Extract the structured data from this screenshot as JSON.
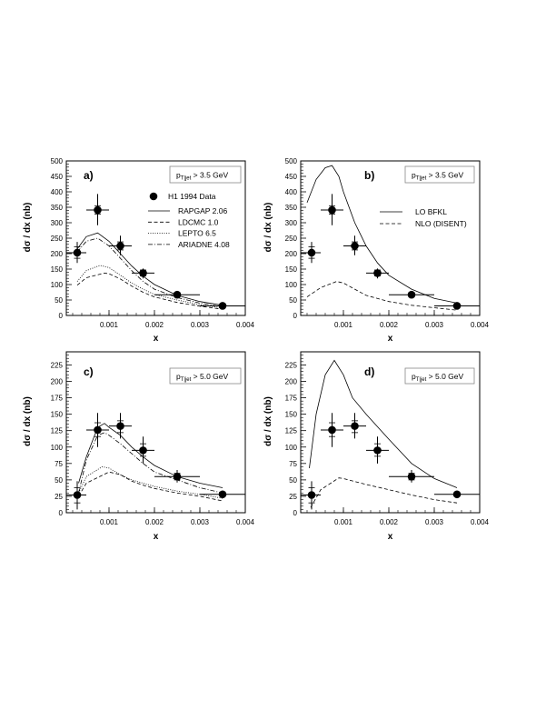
{
  "chart_data": [
    {
      "id": "a",
      "type": "scatter",
      "panel_label": "a)",
      "cut_label": {
        "p": "p",
        "sub": "T|jet",
        "rest": " > 3.5 GeV"
      },
      "xlabel": "x",
      "ylabel": "dσ / dx  (nb)",
      "xlim": [
        6e-05,
        0.004
      ],
      "ylim": [
        0,
        500
      ],
      "xticks": [
        0.001,
        0.002,
        0.003,
        0.004
      ],
      "xtick_labels": [
        "0.001",
        "0.002",
        "0.003",
        "0.004"
      ],
      "yticks": [
        0,
        50,
        100,
        150,
        200,
        250,
        300,
        350,
        400,
        450,
        500
      ],
      "ytick_labels": [
        "0",
        "50",
        "100",
        "150",
        "200",
        "250",
        "300",
        "350",
        "400",
        "450",
        "500"
      ],
      "data": {
        "name": "H1 1994 Data",
        "x": [
          0.0003,
          0.00075,
          0.00125,
          0.00175,
          0.0025,
          0.0035
        ],
        "xlo": [
          6e-05,
          0.0005,
          0.001,
          0.0015,
          0.002,
          0.003
        ],
        "xhi": [
          0.0005,
          0.001,
          0.0015,
          0.002,
          0.003,
          0.004
        ],
        "y": [
          203,
          341,
          225,
          137,
          67,
          31
        ],
        "stat_lo": [
          185,
          328,
          212,
          128,
          61,
          28
        ],
        "stat_hi": [
          222,
          355,
          238,
          147,
          73,
          34
        ],
        "tot_lo": [
          170,
          292,
          195,
          120,
          58,
          26
        ],
        "tot_hi": [
          238,
          393,
          258,
          152,
          76,
          36
        ]
      },
      "series": [
        {
          "name": "RAPGAP 2.06",
          "style": "solid",
          "x": [
            0.0003,
            0.0005,
            0.00075,
            0.001,
            0.00125,
            0.0015,
            0.00175,
            0.002,
            0.0025,
            0.003,
            0.0035
          ],
          "y": [
            215,
            255,
            267,
            240,
            200,
            160,
            127,
            100,
            65,
            45,
            33
          ]
        },
        {
          "name": "LDCMC 1.0",
          "style": "dashed",
          "x": [
            0.0003,
            0.0005,
            0.0009,
            0.001,
            0.00125,
            0.0015,
            0.00175,
            0.002,
            0.0025,
            0.003,
            0.0035
          ],
          "y": [
            98,
            122,
            137,
            135,
            118,
            95,
            75,
            60,
            42,
            30,
            20
          ]
        },
        {
          "name": "LEPTO 6.5",
          "style": "dotted",
          "x": [
            0.0003,
            0.0005,
            0.0008,
            0.001,
            0.00125,
            0.0015,
            0.00175,
            0.002,
            0.0025,
            0.003,
            0.0035
          ],
          "y": [
            110,
            145,
            162,
            155,
            130,
            105,
            85,
            68,
            50,
            35,
            24
          ]
        },
        {
          "name": "ARIADNE 4.08",
          "style": "dashdot",
          "x": [
            0.0003,
            0.0005,
            0.00075,
            0.001,
            0.00125,
            0.0015,
            0.00175,
            0.002,
            0.0025,
            0.003,
            0.0035
          ],
          "y": [
            205,
            240,
            250,
            225,
            185,
            145,
            110,
            85,
            58,
            40,
            28
          ]
        }
      ],
      "legend": "top-right"
    },
    {
      "id": "b",
      "type": "scatter",
      "panel_label": "b)",
      "cut_label": {
        "p": "p",
        "sub": "T|jet",
        "rest": " > 3.5 GeV"
      },
      "xlabel": "x",
      "ylabel": "dσ / dx  (nb)",
      "xlim": [
        6e-05,
        0.004
      ],
      "ylim": [
        0,
        500
      ],
      "xticks": [
        0.001,
        0.002,
        0.003,
        0.004
      ],
      "xtick_labels": [
        "0.001",
        "0.002",
        "0.003",
        "0.004"
      ],
      "yticks": [
        0,
        50,
        100,
        150,
        200,
        250,
        300,
        350,
        400,
        450,
        500
      ],
      "ytick_labels": [
        "0",
        "50",
        "100",
        "150",
        "200",
        "250",
        "300",
        "350",
        "400",
        "450",
        "500"
      ],
      "data": {
        "name": "H1 1994 Data",
        "x": [
          0.0003,
          0.00075,
          0.00125,
          0.00175,
          0.0025,
          0.0035
        ],
        "xlo": [
          6e-05,
          0.0005,
          0.001,
          0.0015,
          0.002,
          0.003
        ],
        "xhi": [
          0.0005,
          0.001,
          0.0015,
          0.002,
          0.003,
          0.004
        ],
        "y": [
          203,
          341,
          225,
          137,
          67,
          31
        ],
        "stat_lo": [
          185,
          328,
          212,
          128,
          61,
          28
        ],
        "stat_hi": [
          222,
          355,
          238,
          147,
          73,
          34
        ],
        "tot_lo": [
          170,
          292,
          195,
          120,
          58,
          26
        ],
        "tot_hi": [
          238,
          393,
          258,
          152,
          76,
          36
        ]
      },
      "series": [
        {
          "name": "LO BFKL",
          "style": "solid",
          "x": [
            0.0002,
            0.0004,
            0.0006,
            0.00075,
            0.0009,
            0.001,
            0.00125,
            0.0015,
            0.00175,
            0.002,
            0.0025,
            0.003,
            0.0035
          ],
          "y": [
            365,
            440,
            478,
            485,
            450,
            400,
            300,
            225,
            170,
            130,
            85,
            55,
            40
          ]
        },
        {
          "name": "NLO (DISENT)",
          "style": "dashed",
          "x": [
            0.0002,
            0.0005,
            0.00085,
            0.001,
            0.00125,
            0.0015,
            0.002,
            0.0025,
            0.003,
            0.0035
          ],
          "y": [
            60,
            90,
            110,
            105,
            85,
            65,
            45,
            33,
            25,
            17
          ]
        }
      ],
      "legend": "top-right"
    },
    {
      "id": "c",
      "type": "scatter",
      "panel_label": "c)",
      "cut_label": {
        "p": "p",
        "sub": "T|jet",
        "rest": " > 5.0 GeV"
      },
      "xlabel": "x",
      "ylabel": "dσ / dx  (nb)",
      "xlim": [
        6e-05,
        0.004
      ],
      "ylim": [
        0,
        245
      ],
      "xticks": [
        0.001,
        0.002,
        0.003,
        0.004
      ],
      "xtick_labels": [
        "0.001",
        "0.002",
        "0.003",
        "0.004"
      ],
      "yticks": [
        0,
        25,
        50,
        75,
        100,
        125,
        150,
        175,
        200,
        225
      ],
      "ytick_labels": [
        "0",
        "25",
        "50",
        "75",
        "100",
        "125",
        "150",
        "175",
        "200",
        "225"
      ],
      "data": {
        "name": "H1 1994 Data",
        "x": [
          0.0003,
          0.00075,
          0.00125,
          0.00175,
          0.0025,
          0.0035
        ],
        "xlo": [
          6e-05,
          0.0005,
          0.001,
          0.0015,
          0.002,
          0.003
        ],
        "xhi": [
          0.0005,
          0.001,
          0.0015,
          0.002,
          0.003,
          0.004
        ],
        "y": [
          27,
          126,
          132,
          95,
          55,
          28
        ],
        "stat_lo": [
          15,
          116,
          122,
          86,
          50,
          26
        ],
        "stat_hi": [
          38,
          137,
          140,
          105,
          60,
          30
        ],
        "tot_lo": [
          5,
          100,
          113,
          75,
          46,
          25
        ],
        "tot_hi": [
          48,
          152,
          152,
          116,
          65,
          31
        ]
      },
      "series": [
        {
          "name": "RAPGAP 2.06",
          "style": "solid",
          "x": [
            0.00033,
            0.0005,
            0.00075,
            0.0009,
            0.001,
            0.00125,
            0.0015,
            0.00175,
            0.002,
            0.0025,
            0.003,
            0.0035
          ],
          "y": [
            45,
            85,
            130,
            136,
            130,
            118,
            100,
            85,
            72,
            55,
            45,
            38
          ]
        },
        {
          "name": "LDCMC 1.0",
          "style": "dashed",
          "x": [
            0.00033,
            0.0005,
            0.001,
            0.00125,
            0.0015,
            0.00175,
            0.002,
            0.0025,
            0.003,
            0.0035
          ],
          "y": [
            25,
            45,
            62,
            58,
            48,
            42,
            37,
            30,
            25,
            18
          ]
        },
        {
          "name": "LEPTO 6.5",
          "style": "dotted",
          "x": [
            0.00033,
            0.0005,
            0.00085,
            0.001,
            0.00125,
            0.0015,
            0.00175,
            0.002,
            0.0025,
            0.003,
            0.0035
          ],
          "y": [
            30,
            55,
            70,
            68,
            58,
            50,
            45,
            40,
            33,
            28,
            22
          ]
        },
        {
          "name": "ARIADNE 4.08",
          "style": "dashdot",
          "x": [
            0.00033,
            0.0005,
            0.00075,
            0.0009,
            0.001,
            0.00125,
            0.0015,
            0.00175,
            0.002,
            0.0025,
            0.003,
            0.0035
          ],
          "y": [
            30,
            80,
            118,
            122,
            118,
            105,
            90,
            75,
            62,
            50,
            38,
            30
          ]
        }
      ]
    },
    {
      "id": "d",
      "type": "scatter",
      "panel_label": "d)",
      "cut_label": {
        "p": "p",
        "sub": "T|jet",
        "rest": " > 5.0 GeV"
      },
      "xlabel": "x",
      "ylabel": "dσ / dx  (nb)",
      "xlim": [
        6e-05,
        0.004
      ],
      "ylim": [
        0,
        245
      ],
      "xticks": [
        0.001,
        0.002,
        0.003,
        0.004
      ],
      "xtick_labels": [
        "0.001",
        "0.002",
        "0.003",
        "0.004"
      ],
      "yticks": [
        0,
        25,
        50,
        75,
        100,
        125,
        150,
        175,
        200,
        225
      ],
      "ytick_labels": [
        "0",
        "25",
        "50",
        "75",
        "100",
        "125",
        "150",
        "175",
        "200",
        "225"
      ],
      "data": {
        "name": "H1 1994 Data",
        "x": [
          0.0003,
          0.00075,
          0.00125,
          0.00175,
          0.0025,
          0.0035
        ],
        "xlo": [
          6e-05,
          0.0005,
          0.001,
          0.0015,
          0.002,
          0.003
        ],
        "xhi": [
          0.0005,
          0.001,
          0.0015,
          0.002,
          0.003,
          0.004
        ],
        "y": [
          27,
          126,
          132,
          95,
          55,
          28
        ],
        "stat_lo": [
          15,
          116,
          122,
          86,
          50,
          26
        ],
        "stat_hi": [
          38,
          137,
          140,
          105,
          60,
          30
        ],
        "tot_lo": [
          5,
          100,
          113,
          75,
          46,
          25
        ],
        "tot_hi": [
          48,
          152,
          152,
          116,
          65,
          31
        ]
      },
      "series": [
        {
          "name": "LO BFKL",
          "style": "solid",
          "x": [
            0.00025,
            0.0004,
            0.0006,
            0.0008,
            0.001,
            0.0012,
            0.0015,
            0.002,
            0.0025,
            0.003,
            0.0035
          ],
          "y": [
            68,
            150,
            210,
            232,
            210,
            175,
            150,
            112,
            75,
            52,
            38
          ]
        },
        {
          "name": "NLO (DISENT)",
          "style": "dashed",
          "x": [
            0.00028,
            0.0005,
            0.0009,
            0.001,
            0.0015,
            0.002,
            0.0025,
            0.003,
            0.0035
          ],
          "y": [
            8,
            35,
            53,
            52,
            43,
            35,
            27,
            20,
            15
          ]
        }
      ]
    }
  ]
}
